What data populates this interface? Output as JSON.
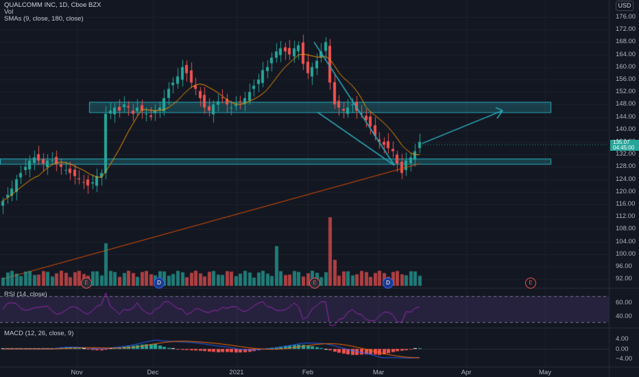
{
  "header": {
    "symbol_line": "QUALCOMM INC, 1D, Cboe BZX",
    "vol_label": "Vol",
    "sma_label": "SMAs (9, close, 180, close)",
    "currency": "USD"
  },
  "price_axis": {
    "labels": [
      "176.00",
      "172.00",
      "168.00",
      "164.00",
      "160.00",
      "156.00",
      "152.00",
      "148.00",
      "144.00",
      "140.00",
      "136.00",
      "132.00",
      "128.00",
      "124.00",
      "120.00",
      "116.00",
      "112.00",
      "108.00",
      "104.00",
      "100.00",
      "96.00",
      "92.00"
    ],
    "last_price": "135.07",
    "countdown": "04:45:00"
  },
  "time_axis": {
    "labels": [
      "Nov",
      "Dec",
      "2021",
      "Feb",
      "Mar",
      "Apr",
      "May"
    ]
  },
  "rsi": {
    "label": "RSI (14, close)",
    "axis_labels": [
      "60.00",
      "40.00"
    ]
  },
  "macd": {
    "label": "MACD (12, 26, close, 9)",
    "axis_labels": [
      "4.00",
      "0.00",
      "−4.00"
    ]
  },
  "events": [
    {
      "type": "E",
      "date": "Nov"
    },
    {
      "type": "D",
      "date": "Dec"
    },
    {
      "type": "E",
      "date": "Feb"
    },
    {
      "type": "D",
      "date": "Mar"
    },
    {
      "type": "E",
      "date": "May"
    }
  ],
  "colors": {
    "up": "#26a69a",
    "down": "#ef5350",
    "sma9": "#ff9800",
    "sma180": "#e65100",
    "zone": "#2bb3c0",
    "rsi": "#9c27b0",
    "macd": "#2962ff",
    "signal": "#ff6d00"
  },
  "chart_data": {
    "type": "candlestick",
    "ohlc_close_approx": [
      117,
      119,
      121,
      124,
      126,
      128,
      130,
      131,
      130,
      129,
      130,
      130,
      129,
      128,
      127,
      126,
      125,
      124,
      123,
      122,
      123,
      125,
      126,
      145,
      146,
      147,
      146,
      148,
      147,
      145,
      147,
      146,
      145,
      144,
      146,
      147,
      150,
      153,
      155,
      157,
      160,
      158,
      155,
      153,
      150,
      147,
      146,
      148,
      149,
      150,
      148,
      147,
      148,
      149,
      150,
      152,
      154,
      156,
      159,
      160,
      163,
      165,
      166,
      165,
      164,
      166,
      167,
      161,
      158,
      160,
      162,
      165,
      168,
      155,
      148,
      147,
      146,
      147,
      148,
      146,
      145,
      143,
      141,
      138,
      136,
      135,
      134,
      133,
      129,
      126,
      130,
      131,
      133,
      136
    ],
    "zones": [
      {
        "low": 145.5,
        "high": 148.8
      },
      {
        "low": 128.9,
        "high": 130.6
      }
    ],
    "ylim": [
      90,
      178
    ]
  }
}
